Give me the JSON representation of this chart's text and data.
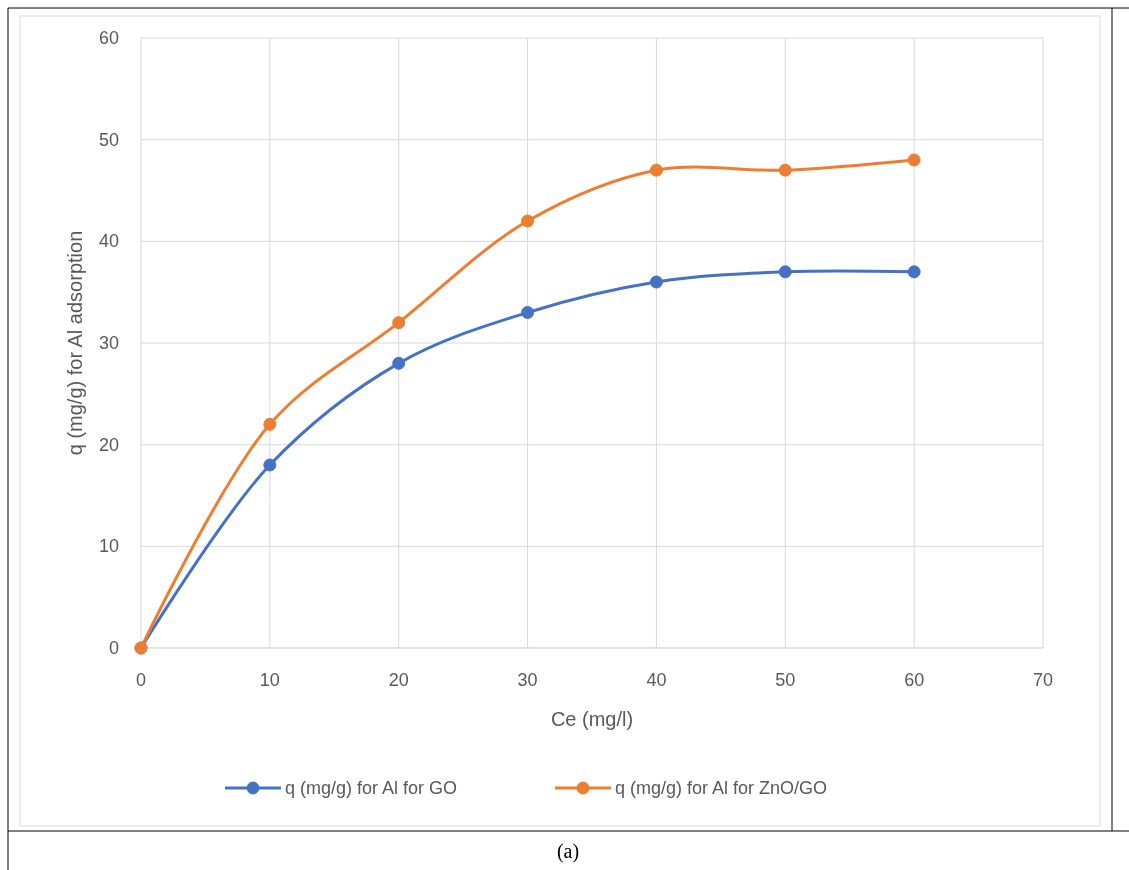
{
  "chart_data": {
    "type": "line",
    "xlabel": "Ce (mg/l)",
    "ylabel": "q (mg/g)  for Al adsorption",
    "x": [
      0,
      10,
      20,
      30,
      40,
      50,
      60
    ],
    "series": [
      {
        "name": "q (mg/g) for Al  for GO",
        "color": "#4472c4",
        "values": [
          0,
          18,
          28,
          33,
          36,
          37,
          37
        ]
      },
      {
        "name": "q (mg/g) for Al  for ZnO/GO",
        "color": "#ed7d31",
        "values": [
          0,
          22,
          32,
          42,
          47,
          47,
          48
        ]
      }
    ],
    "xlim": [
      0,
      70
    ],
    "xticks": [
      0,
      10,
      20,
      30,
      40,
      50,
      60,
      70
    ],
    "ylim": [
      0,
      60
    ],
    "yticks": [
      0,
      10,
      20,
      30,
      40,
      50,
      60
    ],
    "grid": true,
    "legend": "bottom",
    "marker": "circle",
    "line_style": "solid",
    "annotations": [
      "(a)"
    ]
  }
}
